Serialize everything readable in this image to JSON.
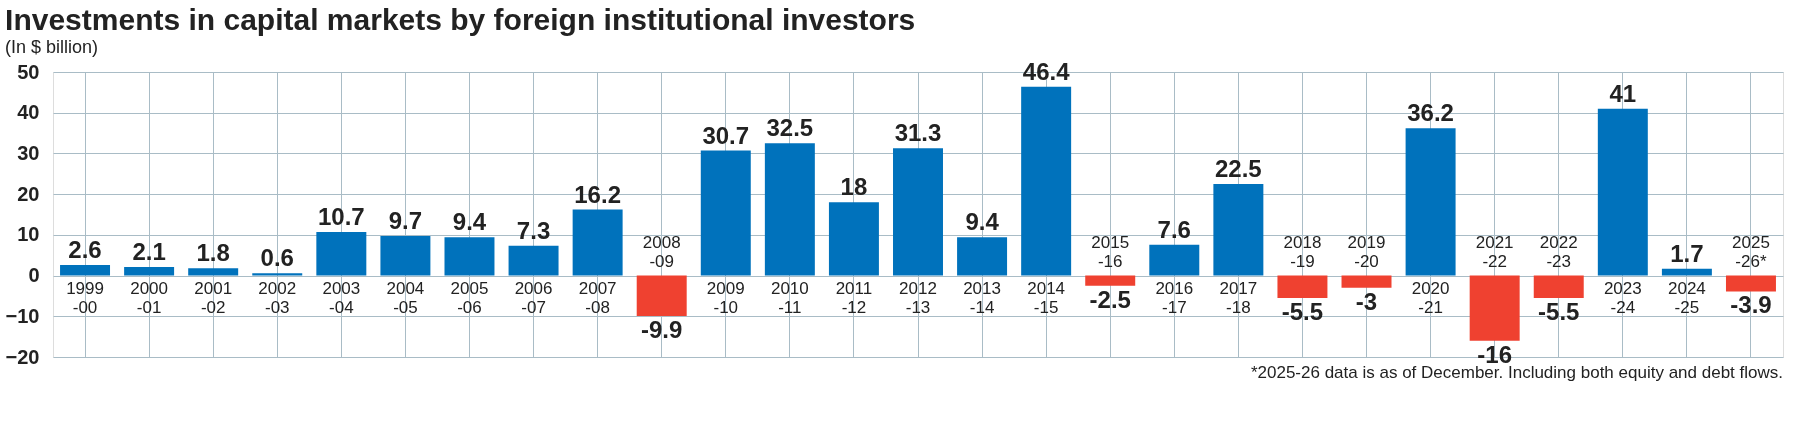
{
  "chart_data": {
    "type": "bar",
    "title": "Investments in capital markets by foreign institutional investors",
    "subtitle": "(In $ billion)",
    "categories": [
      "1999-00",
      "2000-01",
      "2001-02",
      "2002-03",
      "2003-04",
      "2004-05",
      "2005-06",
      "2006-07",
      "2007-08",
      "2008-09",
      "2009-10",
      "2010-11",
      "2011-12",
      "2012-13",
      "2013-14",
      "2014-15",
      "2015-16",
      "2016-17",
      "2017-18",
      "2018-19",
      "2019-20",
      "2020-21",
      "2021-22",
      "2022-23",
      "2023-24",
      "2024-25",
      "2025-26*"
    ],
    "values": [
      2.6,
      2.1,
      1.8,
      0.6,
      10.7,
      9.7,
      9.4,
      7.3,
      16.2,
      -9.9,
      30.7,
      32.5,
      18,
      31.3,
      9.4,
      46.4,
      -2.5,
      7.6,
      22.5,
      -5.5,
      -3,
      36.2,
      -16,
      -5.5,
      41,
      1.7,
      -3.9
    ],
    "colors": [
      "#0072bc",
      "#0072bc",
      "#0072bc",
      "#0072bc",
      "#0072bc",
      "#0072bc",
      "#0072bc",
      "#0072bc",
      "#0072bc",
      "#ef4130",
      "#0072bc",
      "#0072bc",
      "#0072bc",
      "#0072bc",
      "#0072bc",
      "#0072bc",
      "#ef4130",
      "#0072bc",
      "#0072bc",
      "#ef4130",
      "#ef4130",
      "#0072bc",
      "#ef4130",
      "#ef4130",
      "#0072bc",
      "#0072bc",
      "#ef4130"
    ],
    "ylim": [
      -20,
      50
    ],
    "yticks": [
      -20,
      -10,
      0,
      10,
      20,
      30,
      40,
      50
    ],
    "grid": true,
    "data_labels": true,
    "annotations": [
      "*2025-26 data is as of December. Including both equity and debt flows."
    ]
  }
}
